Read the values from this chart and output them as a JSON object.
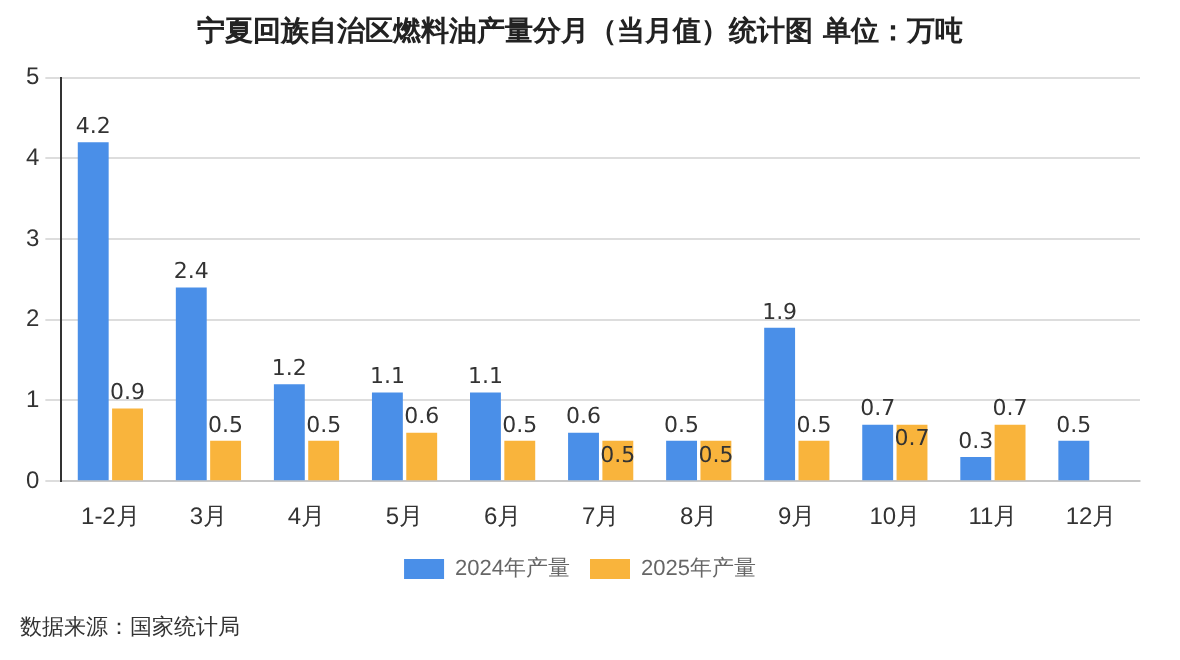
{
  "chart_data": {
    "type": "bar",
    "title": "宁夏回族自治区燃料油产量分月（当月值）统计图 单位：万吨",
    "categories": [
      "1-2月",
      "3月",
      "4月",
      "5月",
      "6月",
      "7月",
      "8月",
      "9月",
      "10月",
      "11月",
      "12月"
    ],
    "series": [
      {
        "name": "2024年产量",
        "color": "#4a8fe8",
        "values": [
          4.2,
          2.4,
          1.2,
          1.1,
          1.1,
          0.6,
          0.5,
          1.9,
          0.7,
          0.3,
          0.5
        ]
      },
      {
        "name": "2025年产量",
        "color": "#f9b43c",
        "values": [
          0.9,
          0.5,
          0.5,
          0.6,
          0.5,
          0.5,
          0.5,
          0.5,
          0.7,
          0.7,
          null
        ]
      }
    ],
    "ylim": [
      0,
      5
    ],
    "yticks": [
      0,
      1,
      2,
      3,
      4,
      5
    ],
    "grid": "y",
    "legend": "bottom",
    "data_labels": true,
    "annotations": [
      "数据来源：国家统计局"
    ]
  }
}
